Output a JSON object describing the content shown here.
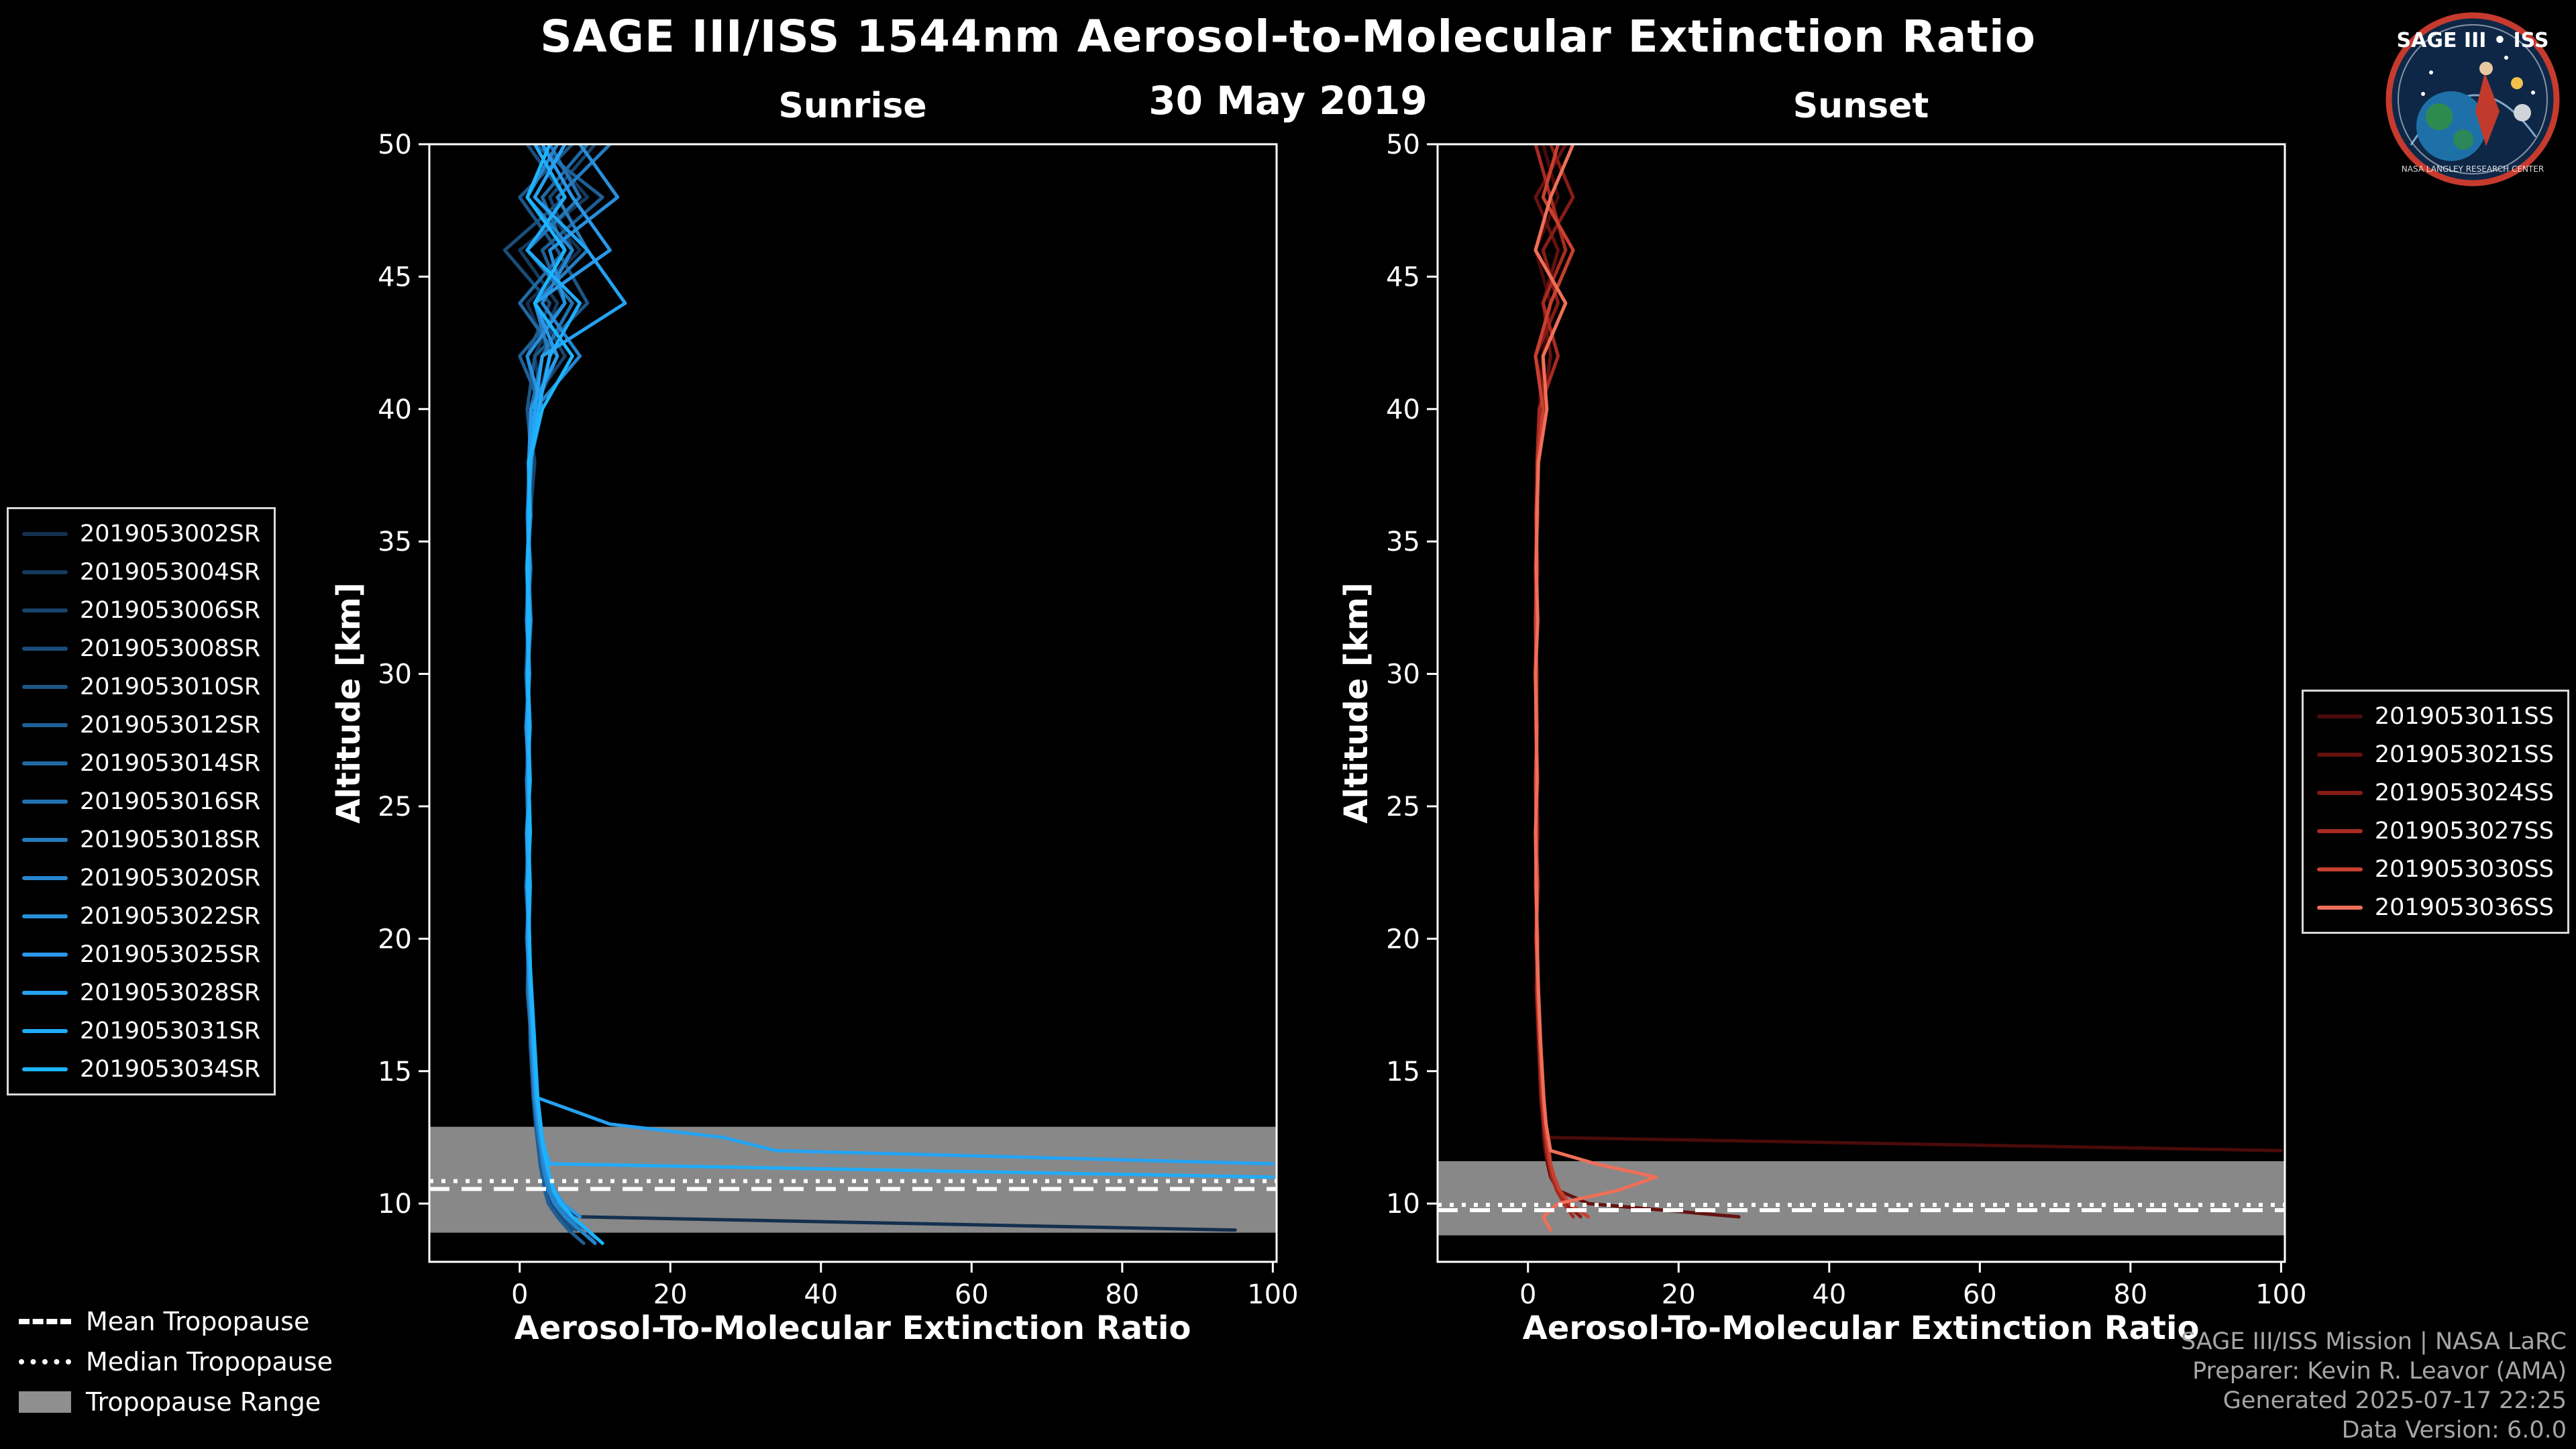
{
  "page": {
    "title": "SAGE III/ISS 1544nm Aerosol-to-Molecular Extinction Ratio",
    "date": "30 May 2019"
  },
  "logo": {
    "title": "SAGE III • ISS",
    "subtitle": "NASA LANGLEY RESEARCH CENTER"
  },
  "tropopause_legend": {
    "items": [
      {
        "label": "Mean Tropopause",
        "style": "dashed"
      },
      {
        "label": "Median Tropopause",
        "style": "dotted"
      },
      {
        "label": "Tropopause Range",
        "style": "band"
      }
    ],
    "band_color": "#8f8f8f"
  },
  "credits": {
    "line1": "SAGE III/ISS Mission | NASA LaRC",
    "line2": "Preparer: Kevin R. Leavor (AMA)",
    "line3": "Generated 2025-07-17 22:25",
    "line4": "Data Version: 6.0.0"
  },
  "chart_data": [
    {
      "type": "line",
      "panel": "sunrise",
      "title": "Sunrise",
      "xlabel": "Aerosol-To-Molecular Extinction Ratio",
      "ylabel": "Altitude [km]",
      "xlim": [
        -12,
        100.5
      ],
      "ylim": [
        7.8,
        50
      ],
      "xticks": [
        0,
        20,
        40,
        60,
        80,
        100
      ],
      "yticks": [
        10,
        15,
        20,
        25,
        30,
        35,
        40,
        45,
        50
      ],
      "grid": false,
      "legend_position": "outside-left",
      "tropopause": {
        "mean_km": 10.55,
        "median_km": 10.85,
        "range_km": [
          8.9,
          12.9
        ]
      },
      "altitudes_km": [
        50,
        48,
        46,
        44,
        42,
        40,
        38,
        36,
        34,
        32,
        30,
        28,
        26,
        24,
        22,
        20,
        18,
        16,
        14,
        13,
        12.5,
        12,
        11.5,
        11,
        10.5,
        10,
        9.5,
        9,
        8.5
      ],
      "series": [
        {
          "name": "2019053002SR",
          "color": "#14304e",
          "values": [
            6,
            2,
            8,
            1,
            4,
            2,
            1.5,
            1.2,
            1,
            1.4,
            1.1,
            0.9,
            1,
            1.2,
            1,
            1.1,
            1.3,
            1.8,
            2.2,
            2.5,
            2.6,
            2.8,
            3,
            3.2,
            3.5,
            4,
            8,
            95,
            null
          ]
        },
        {
          "name": "2019053004SR",
          "color": "#163a5d",
          "values": [
            3,
            9,
            0,
            5,
            2,
            3,
            1.2,
            1,
            1.5,
            1.1,
            0.8,
            1.2,
            1.4,
            1,
            1.2,
            0.9,
            1.4,
            1.6,
            2,
            2.3,
            2.4,
            2.6,
            2.9,
            3.4,
            3.8,
            4.5,
            6,
            9,
            10
          ]
        },
        {
          "name": "2019053006SR",
          "color": "#18436b",
          "values": [
            10,
            4,
            7,
            2,
            6,
            1,
            2,
            1.4,
            1.2,
            0.9,
            1.3,
            1,
            1.1,
            1.4,
            0.8,
            1.2,
            1.1,
            1.7,
            2.1,
            2.4,
            2.7,
            3,
            3.3,
            3.6,
            4,
            5,
            6.5,
            8,
            null
          ]
        },
        {
          "name": "2019053008SR",
          "color": "#1a4d79",
          "values": [
            1,
            6,
            -2,
            4,
            1,
            2.5,
            1.1,
            1.3,
            0.9,
            1.2,
            1,
            1.4,
            0.9,
            1.1,
            1.3,
            1,
            1.2,
            1.5,
            1.9,
            2.2,
            2.4,
            2.6,
            2.8,
            3,
            3.4,
            4.2,
            5.5,
            7,
            null
          ]
        },
        {
          "name": "2019053010SR",
          "color": "#1c5687",
          "values": [
            7,
            0,
            5,
            9,
            2,
            1,
            1.6,
            1.1,
            1.4,
            1,
            1.2,
            0.8,
            1.3,
            1,
            1.1,
            1.2,
            1,
            1.6,
            2,
            2.4,
            2.5,
            2.7,
            3.1,
            3.5,
            4,
            5,
            6,
            7.5,
            null
          ]
        },
        {
          "name": "2019053012SR",
          "color": "#1e5f95",
          "values": [
            2,
            11,
            3,
            6,
            0,
            3,
            1.3,
            1.5,
            1,
            1.2,
            0.9,
            1.1,
            1.2,
            1.4,
            1,
            1.1,
            1.3,
            1.4,
            1.8,
            2.1,
            2.3,
            2.5,
            2.7,
            3,
            3.3,
            3.8,
            5,
            6.5,
            8.5
          ]
        },
        {
          "name": "2019053014SR",
          "color": "#2069a3",
          "values": [
            9,
            3,
            6,
            0,
            5,
            2,
            1.4,
            1,
            1.2,
            1.5,
            1.1,
            1.3,
            0.9,
            1.2,
            1.4,
            1,
            1.2,
            1.8,
            2.2,
            2.6,
            2.8,
            3,
            3.2,
            3.6,
            4.2,
            5.5,
            7,
            null,
            null
          ]
        },
        {
          "name": "2019053016SR",
          "color": "#2272b1",
          "values": [
            4,
            8,
            1,
            7,
            3,
            1.5,
            1.2,
            1.4,
            1.1,
            0.9,
            1.3,
            1,
            1.2,
            1.1,
            0.9,
            1.3,
            1.1,
            1.5,
            1.9,
            2.3,
            2.5,
            2.8,
            3,
            3.4,
            3.9,
            4.8,
            6,
            8,
            null
          ]
        },
        {
          "name": "2019053018SR",
          "color": "#247cbf",
          "values": [
            12,
            5,
            9,
            2,
            4,
            2.5,
            1.5,
            1.2,
            1,
            1.3,
            1.1,
            1.4,
            1,
            1.2,
            1.3,
            1.1,
            1.4,
            1.7,
            2.1,
            2.5,
            2.7,
            2.9,
            3.2,
            3.5,
            4,
            5,
            6.5,
            9,
            null
          ]
        },
        {
          "name": "2019053020SR",
          "color": "#2685cd",
          "values": [
            5,
            1,
            7,
            3,
            8,
            2,
            1.3,
            1.1,
            1.4,
            1,
            1.2,
            1.1,
            1.3,
            0.9,
            1.1,
            1.2,
            1.5,
            1.6,
            2,
            2.4,
            2.6,
            2.9,
            3.1,
            3.4,
            3.8,
            4.6,
            6,
            8,
            10
          ]
        },
        {
          "name": "2019053022SR",
          "color": "#288fdb",
          "values": [
            8,
            13,
            4,
            6,
            1,
            3,
            1.4,
            1.2,
            1.1,
            1.3,
            1,
            1.2,
            1.1,
            1.3,
            1.2,
            1,
            1.3,
            1.7,
            2.1,
            2.5,
            2.8,
            3,
            3.3,
            3.7,
            4.3,
            5.2,
            7,
            null,
            null
          ]
        },
        {
          "name": "2019053025SR",
          "color": "#2a98e9",
          "values": [
            3,
            7,
            12,
            2,
            5,
            1.5,
            1.2,
            1.4,
            1,
            1.1,
            1.3,
            0.9,
            1.2,
            1.4,
            1,
            1.2,
            1.4,
            1.8,
            2.2,
            2.7,
            3,
            3.3,
            3.6,
            4,
            4.6,
            5.8,
            8,
            null,
            null
          ]
        },
        {
          "name": "2019053028SR",
          "color": "#25a2f2",
          "values": [
            6,
            2,
            9,
            14,
            3,
            2,
            1.5,
            1.1,
            1.3,
            1,
            1.2,
            1.1,
            1.4,
            1,
            1.2,
            1.3,
            1.5,
            1.9,
            2.3,
            12,
            27,
            34,
            100,
            null,
            null,
            null,
            null,
            null,
            null
          ]
        },
        {
          "name": "2019053031SR",
          "color": "#21abf8",
          "values": [
            2,
            6,
            1,
            8,
            4,
            2.5,
            1.3,
            1.2,
            1.1,
            1.4,
            1,
            1.2,
            1.3,
            1.1,
            1.4,
            1.2,
            1.6,
            2,
            2.4,
            2.8,
            3,
            3.4,
            4,
            100,
            null,
            null,
            null,
            null,
            null
          ]
        },
        {
          "name": "2019053034SR",
          "color": "#1db4ff",
          "values": [
            4,
            1,
            6,
            2,
            7,
            3,
            1.2,
            1.3,
            1,
            1.2,
            1.1,
            1.3,
            1.2,
            1.4,
            1.1,
            1.3,
            1.5,
            1.9,
            2.3,
            2.7,
            2.9,
            3.2,
            3.6,
            4,
            4.5,
            5.5,
            7,
            9,
            11
          ]
        }
      ]
    },
    {
      "type": "line",
      "panel": "sunset",
      "title": "Sunset",
      "xlabel": "Aerosol-To-Molecular Extinction Ratio",
      "ylabel": "Altitude [km]",
      "xlim": [
        -12,
        100.5
      ],
      "ylim": [
        7.8,
        50
      ],
      "xticks": [
        0,
        20,
        40,
        60,
        80,
        100
      ],
      "yticks": [
        10,
        15,
        20,
        25,
        30,
        35,
        40,
        45,
        50
      ],
      "grid": false,
      "legend_position": "outside-right",
      "tropopause": {
        "mean_km": 9.75,
        "median_km": 9.95,
        "range_km": [
          8.8,
          11.6
        ]
      },
      "altitudes_km": [
        50,
        48,
        46,
        44,
        42,
        40,
        38,
        36,
        34,
        32,
        30,
        28,
        26,
        24,
        22,
        20,
        18,
        16,
        14,
        13,
        12.5,
        12,
        11.5,
        11,
        10.5,
        10,
        9.5,
        9,
        8.5
      ],
      "series": [
        {
          "name": "2019053011SS",
          "color": "#4a0b0b",
          "values": [
            2,
            4,
            1,
            3,
            2,
            1.5,
            1.2,
            1,
            1.3,
            1.1,
            0.9,
            1.2,
            1,
            1.1,
            1.2,
            1,
            1.3,
            1.5,
            1.8,
            2,
            2.2,
            100,
            null,
            null,
            null,
            null,
            null,
            null,
            null
          ]
        },
        {
          "name": "2019053021SS",
          "color": "#661210",
          "values": [
            5,
            1,
            4,
            2,
            3,
            2,
            1.3,
            1.1,
            1,
            1.2,
            1.1,
            1,
            1.2,
            1.3,
            1,
            1.2,
            1.1,
            1.4,
            1.7,
            2,
            2.1,
            2.3,
            2.6,
            3,
            4,
            8,
            28,
            null,
            null
          ]
        },
        {
          "name": "2019053024SS",
          "color": "#871c17",
          "values": [
            3,
            6,
            2,
            4,
            1,
            2.5,
            1.4,
            1.2,
            1.1,
            1,
            1.2,
            1.1,
            1.3,
            1,
            1.2,
            1.1,
            1.4,
            1.6,
            1.9,
            2.2,
            2.4,
            2.6,
            2.9,
            3.3,
            4,
            5,
            7,
            null,
            null
          ]
        },
        {
          "name": "2019053027SS",
          "color": "#a82a21",
          "values": [
            1,
            3,
            5,
            2,
            4,
            1.5,
            1.2,
            1.3,
            1,
            1.1,
            1,
            1.2,
            1.1,
            1.2,
            1,
            1.3,
            1.2,
            1.5,
            1.8,
            2.1,
            2.3,
            2.5,
            2.8,
            3.2,
            3.8,
            4.8,
            6,
            null,
            null
          ]
        },
        {
          "name": "2019053030SS",
          "color": "#c8402f",
          "values": [
            4,
            2,
            6,
            3,
            1,
            2,
            1.3,
            1.1,
            1.2,
            1,
            1.1,
            1.2,
            1,
            1.1,
            1.3,
            1.1,
            1.3,
            1.6,
            2,
            2.3,
            2.5,
            2.8,
            3,
            3.5,
            4.2,
            5.5,
            8,
            null,
            null
          ]
        },
        {
          "name": "2019053036SS",
          "color": "#ef6f58",
          "values": [
            6,
            3,
            1,
            5,
            2,
            2.5,
            1.4,
            1.2,
            1.1,
            1.3,
            1,
            1.1,
            1.2,
            1,
            1.1,
            1.2,
            1.4,
            1.7,
            2.1,
            2.4,
            2.7,
            3,
            9,
            17,
            12,
            4,
            2,
            3,
            null
          ]
        }
      ]
    }
  ]
}
